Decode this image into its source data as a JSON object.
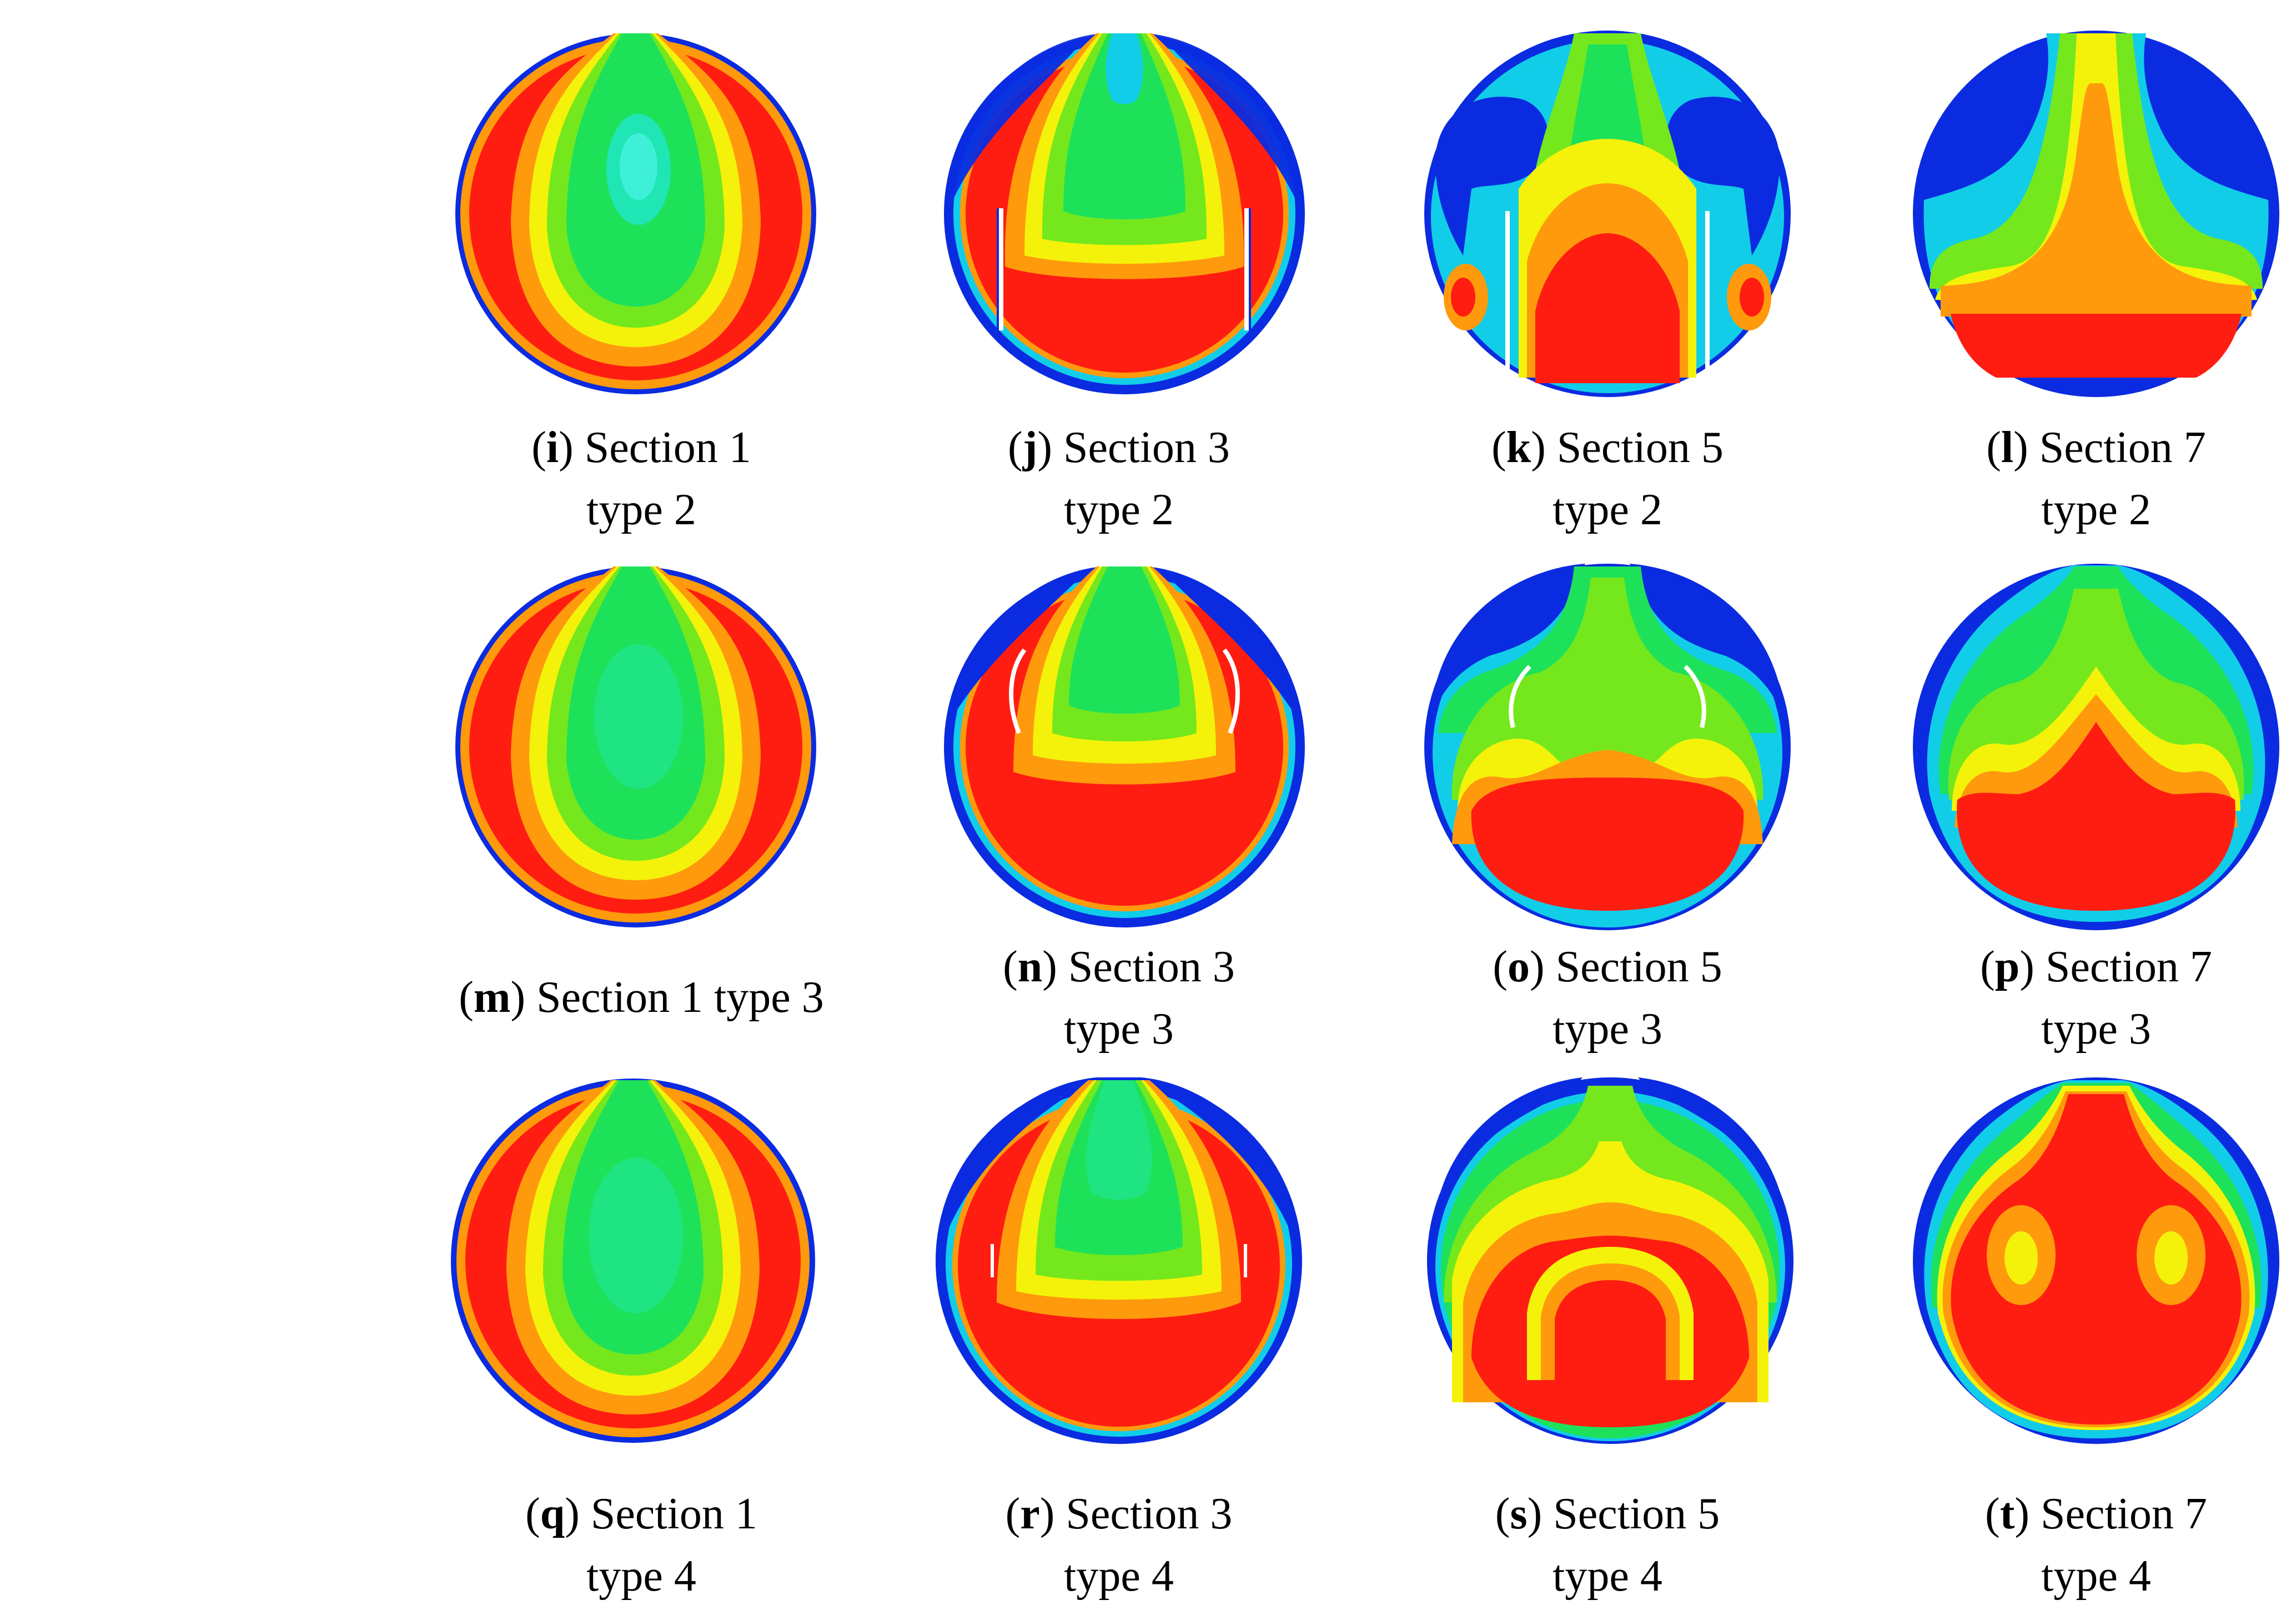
{
  "figure": {
    "colormap": {
      "blue": "#0a2be0",
      "cyan": "#12cde8",
      "teal": "#1fe6b4",
      "green": "#1ee15a",
      "lime": "#74e81c",
      "yellow": "#f4f20a",
      "orange": "#ff9a0c",
      "red": "#ff1d12",
      "baffle": "#ffffff"
    },
    "panels": [
      {
        "id": "i",
        "section_text": "Section 1",
        "type_text": "type 2"
      },
      {
        "id": "j",
        "section_text": "Section 3",
        "type_text": "type 2"
      },
      {
        "id": "k",
        "section_text": "Section 5",
        "type_text": "type 2"
      },
      {
        "id": "l",
        "section_text": "Section 7",
        "type_text": "type 2"
      },
      {
        "id": "m",
        "section_text": "Section 1 type 3",
        "type_text": ""
      },
      {
        "id": "n",
        "section_text": "Section 3",
        "type_text": "type 3"
      },
      {
        "id": "o",
        "section_text": "Section 5",
        "type_text": "type 3"
      },
      {
        "id": "p",
        "section_text": "Section 7",
        "type_text": "type 3"
      },
      {
        "id": "q",
        "section_text": "Section 1",
        "type_text": "type 4"
      },
      {
        "id": "r",
        "section_text": "Section 3",
        "type_text": "type 4"
      },
      {
        "id": "s",
        "section_text": "Section 5",
        "type_text": "type 4"
      },
      {
        "id": "t",
        "section_text": "Section 7",
        "type_text": "type 4"
      }
    ]
  }
}
